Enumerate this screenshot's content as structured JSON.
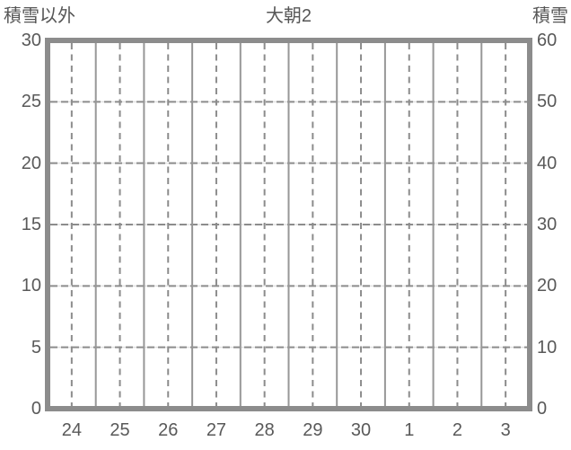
{
  "header": {
    "left_axis_title": "積雪以外",
    "title": "大朝2",
    "right_axis_title": "積雪"
  },
  "chart_data": {
    "type": "line",
    "title": "大朝2",
    "series": [],
    "note": "empty plot area - no data series drawn",
    "left_axis": {
      "label": "積雪以外",
      "ticks": [
        0,
        5,
        10,
        15,
        20,
        25,
        30
      ],
      "range": [
        0,
        30
      ]
    },
    "right_axis": {
      "label": "積雪",
      "ticks": [
        0,
        10,
        20,
        30,
        40,
        50,
        60
      ],
      "range": [
        0,
        60
      ]
    },
    "x_axis": {
      "tick_labels": [
        "24",
        "25",
        "26",
        "27",
        "28",
        "29",
        "30",
        "1",
        "2",
        "3"
      ],
      "days": 10
    },
    "grid": {
      "horizontal": "dashed",
      "vertical_day_boundary": "solid",
      "vertical_midday": "dashed",
      "legend": "none"
    },
    "colors": {
      "frame": "#8c8c8c",
      "grid": "#8c8c8c",
      "grid_underlay": "#e2e2e2",
      "vertical_solid": "#979797",
      "text": "#595959"
    }
  }
}
